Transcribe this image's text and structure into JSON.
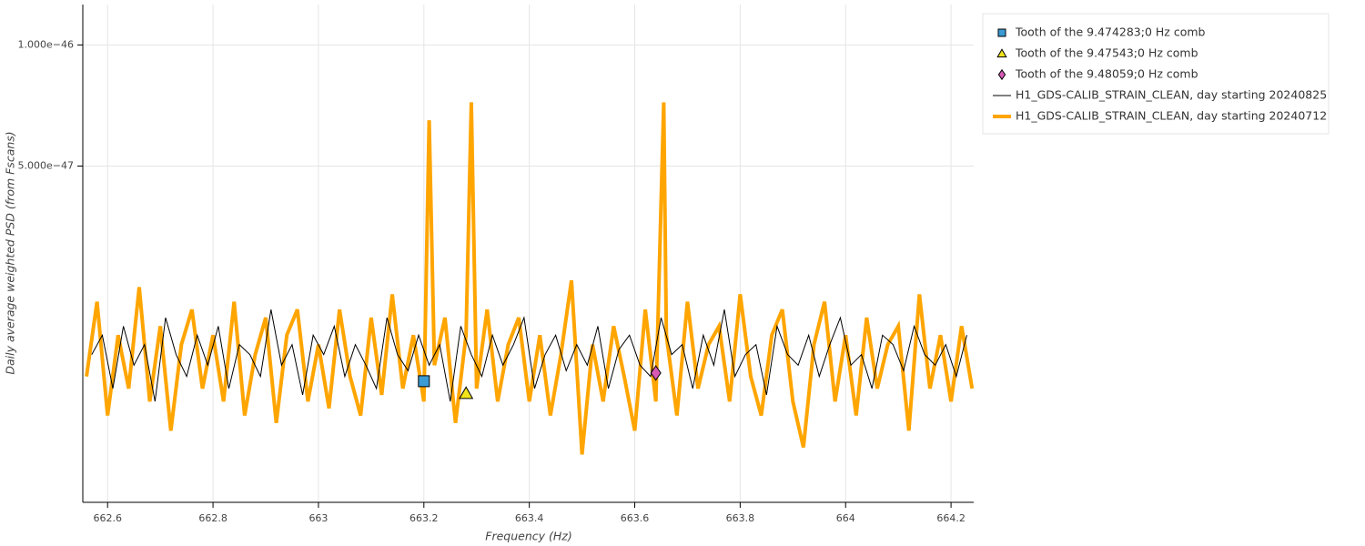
{
  "chart_data": {
    "type": "line",
    "x_label": "Frequency (Hz)",
    "y_label": "Daily average weighted PSD (from Fscans)",
    "xlim": [
      662.553,
      664.243
    ],
    "xticks": [
      662.6,
      662.8,
      663,
      663.2,
      663.4,
      663.6,
      663.8,
      664,
      664.2
    ],
    "ylim": [
      7.3e-48,
      1.26e-46
    ],
    "yticks": [
      {
        "value": 1e-46,
        "label": "1.000e−46"
      },
      {
        "value": 5e-47,
        "label": "5.000e−47"
      }
    ],
    "y_scale": "log",
    "grid": true,
    "legend_location": "outside-right",
    "series": [
      {
        "name": "Tooth of the 9.474283;0 Hz comb",
        "type": "scatter",
        "marker": "square",
        "color": "#3a9bd5",
        "x": [
          663.2
        ],
        "values": [
          1.46e-47
        ]
      },
      {
        "name": "Tooth of the 9.47543;0 Hz comb",
        "type": "scatter",
        "marker": "triangle",
        "color": "#f2e41c",
        "x": [
          663.28
        ],
        "values": [
          1.36e-47
        ]
      },
      {
        "name": "Tooth of the 9.48059;0 Hz comb",
        "type": "scatter",
        "marker": "diamond",
        "color": "#d65ab4",
        "x": [
          663.64
        ],
        "values": [
          1.53e-47
        ]
      },
      {
        "name": "H1_GDS-CALIB_STRAIN_CLEAN, day starting 20240825",
        "type": "line",
        "color": "#000000",
        "line_width": 1,
        "x": [
          662.57,
          662.59,
          662.61,
          662.63,
          662.65,
          662.67,
          662.69,
          662.71,
          662.73,
          662.75,
          662.77,
          662.79,
          662.81,
          662.83,
          662.85,
          662.87,
          662.89,
          662.91,
          662.93,
          662.95,
          662.97,
          662.99,
          663.01,
          663.03,
          663.05,
          663.07,
          663.09,
          663.11,
          663.13,
          663.15,
          663.17,
          663.19,
          663.21,
          663.23,
          663.25,
          663.27,
          663.29,
          663.31,
          663.33,
          663.35,
          663.37,
          663.39,
          663.41,
          663.43,
          663.45,
          663.47,
          663.49,
          663.51,
          663.53,
          663.55,
          663.57,
          663.59,
          663.61,
          663.63,
          663.65,
          663.67,
          663.69,
          663.71,
          663.73,
          663.75,
          663.77,
          663.79,
          663.81,
          663.83,
          663.85,
          663.87,
          663.89,
          663.91,
          663.93,
          663.95,
          663.97,
          663.99,
          664.01,
          664.03,
          664.05,
          664.07,
          664.09,
          664.11,
          664.13,
          664.15,
          664.17,
          664.19,
          664.21,
          664.23
        ],
        "values": [
          1.7e-47,
          1.9e-47,
          1.4e-47,
          2e-47,
          1.6e-47,
          1.8e-47,
          1.3e-47,
          2.1e-47,
          1.7e-47,
          1.5e-47,
          1.9e-47,
          1.6e-47,
          2e-47,
          1.4e-47,
          1.8e-47,
          1.7e-47,
          1.5e-47,
          2.2e-47,
          1.6e-47,
          1.8e-47,
          1.35e-47,
          1.9e-47,
          1.7e-47,
          2e-47,
          1.5e-47,
          1.8e-47,
          1.6e-47,
          1.4e-47,
          2.1e-47,
          1.7e-47,
          1.55e-47,
          1.9e-47,
          1.6e-47,
          1.8e-47,
          1.3e-47,
          2e-47,
          1.7e-47,
          1.5e-47,
          1.9e-47,
          1.6e-47,
          1.8e-47,
          2.1e-47,
          1.4e-47,
          1.7e-47,
          1.9e-47,
          1.55e-47,
          1.8e-47,
          1.6e-47,
          2e-47,
          1.4e-47,
          1.75e-47,
          1.9e-47,
          1.6e-47,
          1.5e-47,
          2.1e-47,
          1.7e-47,
          1.8e-47,
          1.4e-47,
          1.9e-47,
          1.6e-47,
          2.2e-47,
          1.5e-47,
          1.7e-47,
          1.8e-47,
          1.35e-47,
          2e-47,
          1.7e-47,
          1.6e-47,
          1.9e-47,
          1.5e-47,
          1.8e-47,
          2.1e-47,
          1.6e-47,
          1.7e-47,
          1.4e-47,
          1.9e-47,
          1.8e-47,
          1.55e-47,
          2e-47,
          1.7e-47,
          1.6e-47,
          1.8e-47,
          1.5e-47,
          1.9e-47
        ]
      },
      {
        "name": "H1_GDS-CALIB_STRAIN_CLEAN, day starting 20240712",
        "type": "line",
        "color": "#ffa500",
        "line_width": 4,
        "x": [
          662.56,
          662.58,
          662.6,
          662.62,
          662.64,
          662.66,
          662.68,
          662.7,
          662.72,
          662.74,
          662.76,
          662.78,
          662.8,
          662.82,
          662.84,
          662.86,
          662.88,
          662.9,
          662.92,
          662.94,
          662.96,
          662.98,
          663.0,
          663.02,
          663.04,
          663.06,
          663.08,
          663.1,
          663.12,
          663.14,
          663.16,
          663.18,
          663.2,
          663.21,
          663.22,
          663.24,
          663.26,
          663.28,
          663.29,
          663.3,
          663.32,
          663.34,
          663.36,
          663.38,
          663.4,
          663.42,
          663.44,
          663.46,
          663.48,
          663.5,
          663.52,
          663.54,
          663.56,
          663.58,
          663.6,
          663.62,
          663.64,
          663.655,
          663.66,
          663.68,
          663.7,
          663.72,
          663.74,
          663.76,
          663.78,
          663.8,
          663.82,
          663.84,
          663.86,
          663.88,
          663.9,
          663.92,
          663.94,
          663.96,
          663.98,
          664.0,
          664.02,
          664.04,
          664.06,
          664.08,
          664.1,
          664.12,
          664.14,
          664.16,
          664.18,
          664.2,
          664.22,
          664.24
        ],
        "values": [
          1.5e-47,
          2.3e-47,
          1.2e-47,
          1.9e-47,
          1.4e-47,
          2.5e-47,
          1.3e-47,
          2e-47,
          1.1e-47,
          1.8e-47,
          2.2e-47,
          1.4e-47,
          1.9e-47,
          1.3e-47,
          2.3e-47,
          1.2e-47,
          1.7e-47,
          2.1e-47,
          1.15e-47,
          1.9e-47,
          2.2e-47,
          1.3e-47,
          1.8e-47,
          1.25e-47,
          2.2e-47,
          1.5e-47,
          1.2e-47,
          2.1e-47,
          1.35e-47,
          2.4e-47,
          1.4e-47,
          1.9e-47,
          1.3e-47,
          6.5e-47,
          1.6e-47,
          2.1e-47,
          1.15e-47,
          1.9e-47,
          7.2e-47,
          1.4e-47,
          2.2e-47,
          1.3e-47,
          1.8e-47,
          2.1e-47,
          1.3e-47,
          1.9e-47,
          1.2e-47,
          1.7e-47,
          2.6e-47,
          9.6e-48,
          1.8e-47,
          1.3e-47,
          2e-47,
          1.5e-47,
          1.1e-47,
          2.2e-47,
          1.3e-47,
          7.2e-47,
          1.9e-47,
          1.2e-47,
          2.3e-47,
          1.4e-47,
          1.8e-47,
          2e-47,
          1.3e-47,
          2.4e-47,
          1.5e-47,
          1.2e-47,
          1.9e-47,
          2.2e-47,
          1.3e-47,
          1e-47,
          1.8e-47,
          2.3e-47,
          1.3e-47,
          1.9e-47,
          1.2e-47,
          2.1e-47,
          1.4e-47,
          1.8e-47,
          2e-47,
          1.1e-47,
          2.4e-47,
          1.4e-47,
          1.9e-47,
          1.3e-47,
          2e-47,
          1.4e-47
        ]
      }
    ]
  }
}
